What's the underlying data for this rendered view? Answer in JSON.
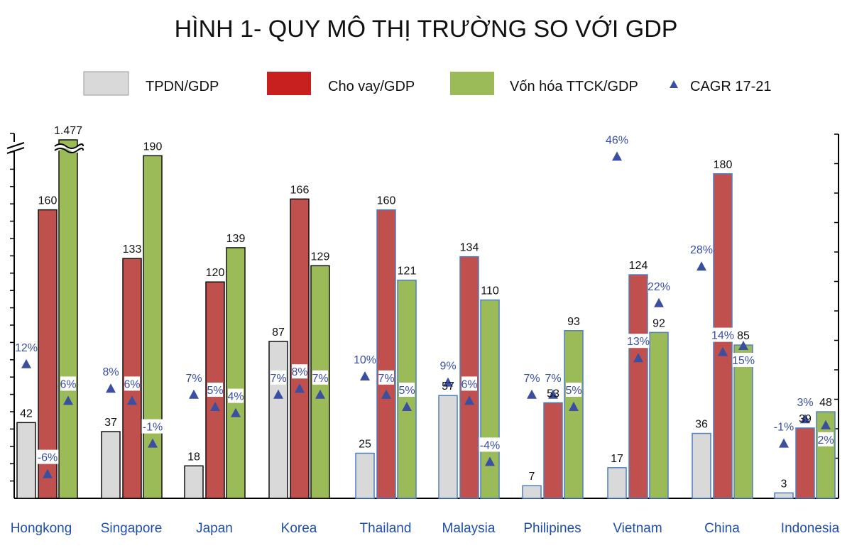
{
  "chart_data": {
    "type": "bar",
    "title": "HÌNH 1- QUY MÔ THỊ TRƯỜNG SO VỚI GDP",
    "categories": [
      "Hongkong",
      "Singapore",
      "Japan",
      "Korea",
      "Thailand",
      "Malaysia",
      "Philipines",
      "Vietnam",
      "China",
      "Indonesia"
    ],
    "series": [
      {
        "name": "TPDN/GDP",
        "color": "#d9d9d9",
        "values": [
          42,
          37,
          18,
          87,
          25,
          57,
          7,
          17,
          36,
          3
        ],
        "labels": [
          "42",
          "37",
          "18",
          "87",
          "25",
          "57",
          "7",
          "17",
          "36",
          "3"
        ]
      },
      {
        "name": "Cho vay/GDP",
        "color": "#c0504d",
        "values": [
          160,
          133,
          120,
          166,
          160,
          134,
          53,
          124,
          180,
          39
        ],
        "labels": [
          "160",
          "133",
          "120",
          "166",
          "160",
          "134",
          "53",
          "124",
          "180",
          "39"
        ]
      },
      {
        "name": "Vốn hóa TTCK/GDP",
        "color": "#9bbb59",
        "values": [
          1477,
          190,
          139,
          129,
          121,
          110,
          93,
          92,
          85,
          48
        ],
        "labels": [
          "1.477",
          "190",
          "139",
          "129",
          "121",
          "110",
          "93",
          "92",
          "85",
          "48"
        ]
      }
    ],
    "cagr": {
      "name": "CAGR 17-21",
      "color": "#3a4fa0",
      "unit": "%",
      "values": [
        [
          12,
          -6,
          6
        ],
        [
          8,
          6,
          -1
        ],
        [
          7,
          5,
          4
        ],
        [
          7,
          8,
          7
        ],
        [
          10,
          7,
          5
        ],
        [
          9,
          6,
          -4
        ],
        [
          7,
          7,
          5
        ],
        [
          46,
          13,
          22
        ],
        [
          28,
          14,
          15
        ],
        [
          -1,
          3,
          2
        ]
      ],
      "labels": [
        [
          "12%",
          "-6%",
          "6%"
        ],
        [
          "8%",
          "6%",
          "-1%"
        ],
        [
          "7%",
          "5%",
          "4%"
        ],
        [
          "7%",
          "8%",
          "7%"
        ],
        [
          "10%",
          "7%",
          "5%"
        ],
        [
          "9%",
          "6%",
          "-4%"
        ],
        [
          "7%",
          "7%",
          "5%"
        ],
        [
          "46%",
          "13%",
          "22%"
        ],
        [
          "28%",
          "14%",
          "15%"
        ],
        [
          "-1%",
          "3%",
          "2%"
        ]
      ]
    },
    "axis_break": true,
    "grid": false,
    "legend": "top"
  }
}
